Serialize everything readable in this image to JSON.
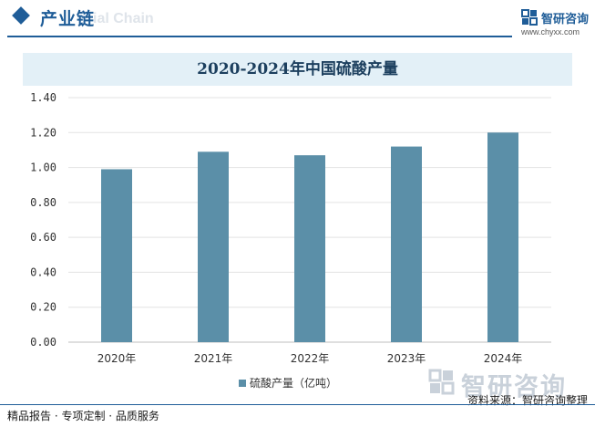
{
  "header": {
    "title": "产业链",
    "watermark_text": "ial Chain",
    "brand": "智研咨询",
    "url": "www.chyxx.com"
  },
  "chart_data": {
    "type": "bar",
    "title": "2020-2024年中国硫酸产量",
    "categories": [
      "2020年",
      "2021年",
      "2022年",
      "2023年",
      "2024年"
    ],
    "series": [
      {
        "name": "硫酸产量（亿吨）",
        "values": [
          0.99,
          1.09,
          1.07,
          1.12,
          1.2
        ]
      }
    ],
    "y_ticks": [
      "0.00",
      "0.20",
      "0.40",
      "0.60",
      "0.80",
      "1.00",
      "1.20",
      "1.40"
    ],
    "ylim": [
      0,
      1.4
    ],
    "grid": true,
    "legend_position": "bottom",
    "bar_color": "#5b8fa8"
  },
  "footer": {
    "left_text": "精品报告 · 专项定制 · 品质服务",
    "source": "资料来源：智研咨询整理",
    "brand_large": "智研咨询"
  }
}
